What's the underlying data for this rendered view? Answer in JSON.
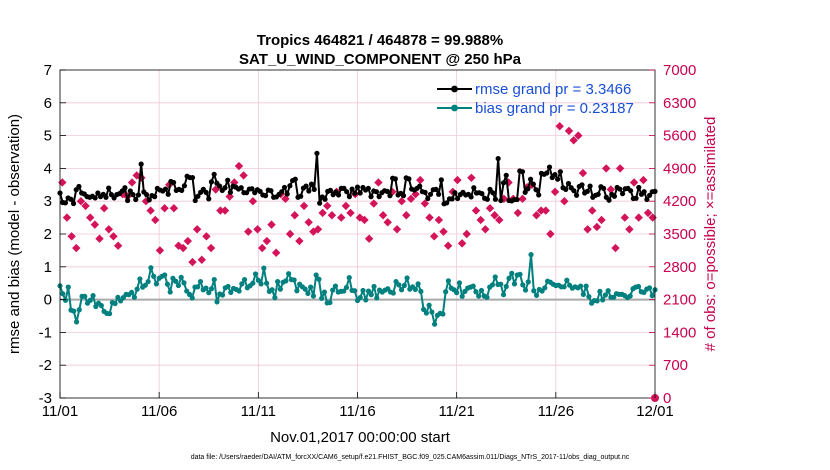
{
  "chart_data": {
    "type": "line",
    "title": "Tropics 464821 / 464878 = 99.988%",
    "subtitle": "SAT_U_WIND_COMPONENT @ 250 hPa",
    "xlabel": "Nov.01,2017 00:00:00 start",
    "ylabel": "rmse and bias (model - observation)",
    "y2label": "# of obs: o=possible; ×=assimilated",
    "footer": "data file: /Users/raeder/DAI/ATM_forcXX/CAM6_setup/f.e21.FHIST_BGC.f09_025.CAM6assim.011/Diags_NTrS_2017-11/obs_diag_output.nc",
    "x_tick_labels": [
      "11/01",
      "11/06",
      "11/11",
      "11/16",
      "11/21",
      "11/26",
      "12/01"
    ],
    "x_tick_days": [
      0,
      5,
      10,
      15,
      20,
      25,
      30
    ],
    "xlim": [
      0,
      30
    ],
    "ylim": [
      -3,
      7
    ],
    "y_ticks": [
      -3,
      -2,
      -1,
      0,
      1,
      2,
      3,
      4,
      5,
      6,
      7
    ],
    "y2lim": [
      0,
      7000
    ],
    "y2_ticks": [
      0,
      700,
      1400,
      2100,
      2800,
      3500,
      4200,
      4900,
      5600,
      6300,
      7000
    ],
    "grid": true,
    "legend_location": "top-right",
    "colors": {
      "rmse": "#000000",
      "bias": "#00807e",
      "obs": "#d4145a",
      "zero_line": "#a9a9a9",
      "grid": "#f0c8d8",
      "legend_text": "#1a4fd6",
      "right_axis": "#c8004f"
    },
    "series": [
      {
        "name": "rmse grand pr = 3.3466",
        "axis": "left",
        "marker": "circle",
        "values": [
          3.25,
          2.96,
          2.95,
          3.1,
          3.06,
          2.93,
          3.35,
          3.45,
          3.25,
          3.22,
          3.14,
          3.12,
          3.15,
          3.1,
          3.25,
          3.14,
          3.21,
          3.12,
          3.4,
          3.2,
          3.1,
          3.2,
          3.23,
          3.31,
          3.41,
          3.02,
          3.31,
          3.2,
          3.05,
          3.19,
          4.13,
          3.28,
          3.2,
          3.04,
          3.17,
          3.14,
          3.39,
          3.34,
          3.31,
          3.37,
          3.21,
          3.6,
          3.57,
          3.33,
          3.36,
          3.33,
          3.47,
          3.76,
          3.72,
          3.72,
          3.02,
          3.15,
          3.27,
          3.36,
          3.27,
          3.07,
          3.59,
          3.82,
          3.55,
          3.46,
          3.33,
          3.41,
          3.64,
          3.27,
          3.46,
          3.43,
          3.37,
          3.41,
          3.26,
          3.26,
          3.37,
          3.38,
          3.26,
          3.35,
          3.3,
          3.19,
          3.17,
          3.34,
          3.32,
          3.12,
          3.13,
          3.21,
          3.29,
          3.42,
          3.22,
          3.47,
          3.63,
          3.67,
          3.12,
          3.15,
          3.4,
          3.46,
          3.31,
          3.52,
          3.36,
          4.46,
          2.94,
          3.13,
          3.06,
          3.3,
          3.33,
          3.2,
          3.28,
          3.19,
          3.39,
          3.39,
          3.29,
          3.14,
          3.37,
          3.24,
          3.43,
          3.25,
          3.42,
          3.34,
          3.39,
          3.14,
          3.31,
          3.29,
          3.14,
          3.26,
          3.32,
          3.3,
          3.17,
          3.7,
          3.68,
          3.19,
          3.24,
          3.17,
          3.71,
          3.68,
          3.37,
          3.34,
          3.39,
          3.46,
          3.29,
          3.27,
          3.08,
          3.21,
          3.35,
          3.36,
          3.21,
          3.65,
          2.92,
          2.95,
          3.07,
          3.07,
          3.26,
          3.08,
          3.2,
          3.27,
          3.19,
          3.21,
          3.13,
          3.41,
          3.25,
          3.26,
          3.23,
          3.09,
          3.06,
          3.36,
          3.26,
          3.06,
          4.3,
          3.02,
          3.56,
          3.79,
          3.02,
          3.01,
          3.05,
          3.05,
          3.92,
          3.9,
          3.27,
          3.38,
          3.67,
          3.52,
          3.35,
          3.19,
          3.85,
          3.82,
          3.86,
          4.04,
          3.72,
          3.81,
          3.67,
          3.9,
          3.41,
          3.36,
          3.54,
          3.41,
          3.32,
          3.18,
          3.45,
          3.5,
          3.25,
          3.3,
          3.46,
          3.12,
          3.18,
          3.21,
          3.44,
          3.39,
          3.12,
          3.03,
          3.21,
          3.15,
          3.42,
          3.37,
          3.23,
          3.38,
          3.39,
          3.32,
          3.08,
          3.09,
          3.42,
          3.21,
          3.29,
          3.05,
          3.18,
          3.29,
          3.3
        ]
      },
      {
        "name": "bias grand pr = 0.23187",
        "axis": "left",
        "marker": "circle",
        "values": [
          0.42,
          0.18,
          -0.02,
          0.38,
          -0.32,
          -0.35,
          -0.68,
          -0.31,
          0.1,
          0.1,
          -0.11,
          -0.02,
          0.12,
          -0.21,
          -0.11,
          -0.18,
          -0.36,
          -0.42,
          -0.43,
          -0.09,
          -0.12,
          0.07,
          -0.04,
          0.06,
          0.16,
          0.15,
          0.22,
          0.07,
          0.32,
          0.63,
          0.38,
          0.44,
          0.55,
          0.97,
          0.71,
          0.48,
          0.65,
          0.71,
          0.75,
          0.47,
          0.23,
          0.65,
          0.56,
          0.43,
          0.68,
          0.51,
          0.26,
          0.16,
          0.05,
          0.38,
          0.39,
          0.55,
          0.3,
          0.35,
          0.21,
          0.33,
          0.61,
          -0.07,
          0.17,
          0.14,
          0.36,
          0.4,
          0.22,
          0.34,
          0.31,
          0.26,
          0.48,
          0.61,
          0.36,
          0.42,
          0.5,
          0.78,
          0.59,
          0.48,
          0.96,
          0.5,
          0.25,
          0.3,
          0.06,
          0.55,
          0.32,
          0.53,
          0.57,
          0.79,
          0.61,
          0.6,
          0.27,
          0.47,
          0.39,
          0.32,
          0.19,
          0.38,
          0.11,
          0.75,
          0.62,
          0.04,
          0.23,
          -0.1,
          -0.09,
          0.29,
          0.41,
          0.23,
          0.25,
          0.26,
          0.37,
          0.67,
          0.28,
          0.27,
          -0.03,
          0.06,
          0.28,
          -0.01,
          0.26,
          0.15,
          0.4,
          0.05,
          0.29,
          0.23,
          0.29,
          0.33,
          0.23,
          0.2,
          0.55,
          0.45,
          0.3,
          0.43,
          0.66,
          0.32,
          0.39,
          0.31,
          0.48,
          0.25,
          -0.3,
          -0.41,
          -0.17,
          -0.38,
          -0.75,
          -0.48,
          -0.42,
          -0.44,
          0.24,
          0.57,
          0.35,
          0.3,
          0.21,
          0.51,
          0.1,
          0.25,
          0.35,
          0.38,
          0.41,
          0.24,
          0.11,
          0.28,
          0.11,
          0.07,
          0.38,
          0.45,
          0.69,
          0.46,
          0.47,
          0.15,
          0.4,
          0.65,
          0.8,
          0.48,
          0.75,
          0.77,
          0.45,
          0.29,
          0.54,
          1.37,
          0.27,
          0.13,
          0.31,
          0.26,
          0.36,
          0.56,
          0.53,
          0.47,
          0.43,
          0.44,
          0.39,
          0.39,
          0.59,
          0.44,
          0.35,
          0.39,
          0.36,
          0.41,
          0.16,
          0.41,
          0.09,
          -0.11,
          -0.03,
          -0.04,
          0.25,
          -0.01,
          0.14,
          0.27,
          0.07,
          0.07,
          0.18,
          0.16,
          0.16,
          0.12,
          0.06,
          0.11,
          0.33,
          0.38,
          0.4,
          0.24,
          0.22,
          0.32,
          0.36,
          0.12,
          0.3
        ]
      },
      {
        "name": "assimilated",
        "axis": "right",
        "marker": "x",
        "values": [
          4600,
          3850,
          3450,
          3200,
          4200,
          4100,
          3850,
          3700,
          3400,
          4050,
          3600,
          3450,
          3250,
          4350,
          4300,
          4600,
          4750,
          4700,
          4200,
          4000,
          3800,
          3150,
          4050,
          4550,
          4050,
          3250,
          3200,
          3350,
          2900,
          3600,
          2950,
          3450,
          3200,
          4450,
          4000,
          4000,
          4300,
          4600,
          4950,
          4750,
          3550,
          4200,
          3600,
          3200,
          3350,
          3700,
          3100,
          4350,
          4250,
          3500,
          3900,
          3350,
          4100,
          3750,
          3550,
          3600,
          3950,
          4100,
          3900,
          4400,
          3850,
          4100,
          3950,
          4350,
          3850,
          3800,
          3400,
          4150,
          4600,
          3900,
          3750,
          4400,
          3600,
          4200,
          3900,
          4250,
          4350,
          4650,
          4150,
          3850,
          3450,
          3800,
          3550,
          3250,
          4400,
          4650,
          3300,
          3500,
          4700,
          4000,
          3800,
          3600,
          4050,
          3900,
          3800,
          4250,
          4600,
          4250,
          3950,
          4250,
          4500,
          4550,
          3900,
          4000,
          4000,
          3500,
          4400,
          5800,
          4200,
          5700,
          5500,
          5600,
          4800,
          3600,
          4000,
          3650,
          3800,
          4900,
          4450,
          3200,
          4900,
          3850,
          3600,
          4600,
          3850,
          4650,
          3950,
          3850
        ]
      }
    ]
  }
}
